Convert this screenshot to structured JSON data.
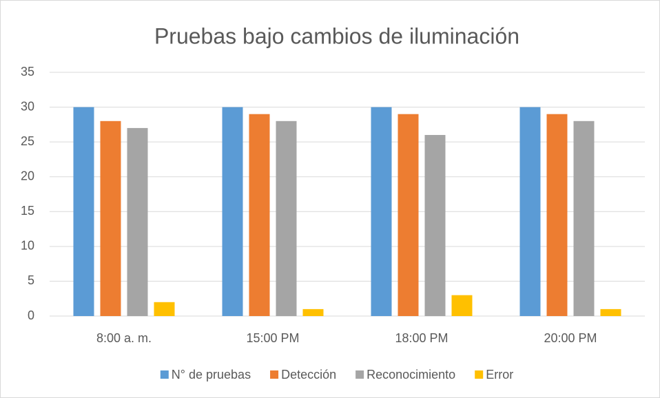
{
  "chart_data": {
    "type": "bar",
    "title": "Pruebas bajo cambios de iluminación",
    "categories": [
      "8:00 a. m.",
      "15:00 PM",
      "18:00 PM",
      "20:00 PM"
    ],
    "series": [
      {
        "name": "N° de pruebas",
        "color": "#5b9bd5",
        "values": [
          30,
          30,
          30,
          30
        ]
      },
      {
        "name": "Detección",
        "color": "#ed7d31",
        "values": [
          28,
          29,
          29,
          29
        ]
      },
      {
        "name": "Reconocimiento",
        "color": "#a5a5a5",
        "values": [
          27,
          28,
          26,
          28
        ]
      },
      {
        "name": "Error",
        "color": "#ffc000",
        "values": [
          2,
          1,
          3,
          1
        ]
      }
    ],
    "ylim": [
      0,
      35
    ],
    "yticks": [
      0,
      5,
      10,
      15,
      20,
      25,
      30,
      35
    ],
    "grid": true,
    "legend": "bottom"
  }
}
